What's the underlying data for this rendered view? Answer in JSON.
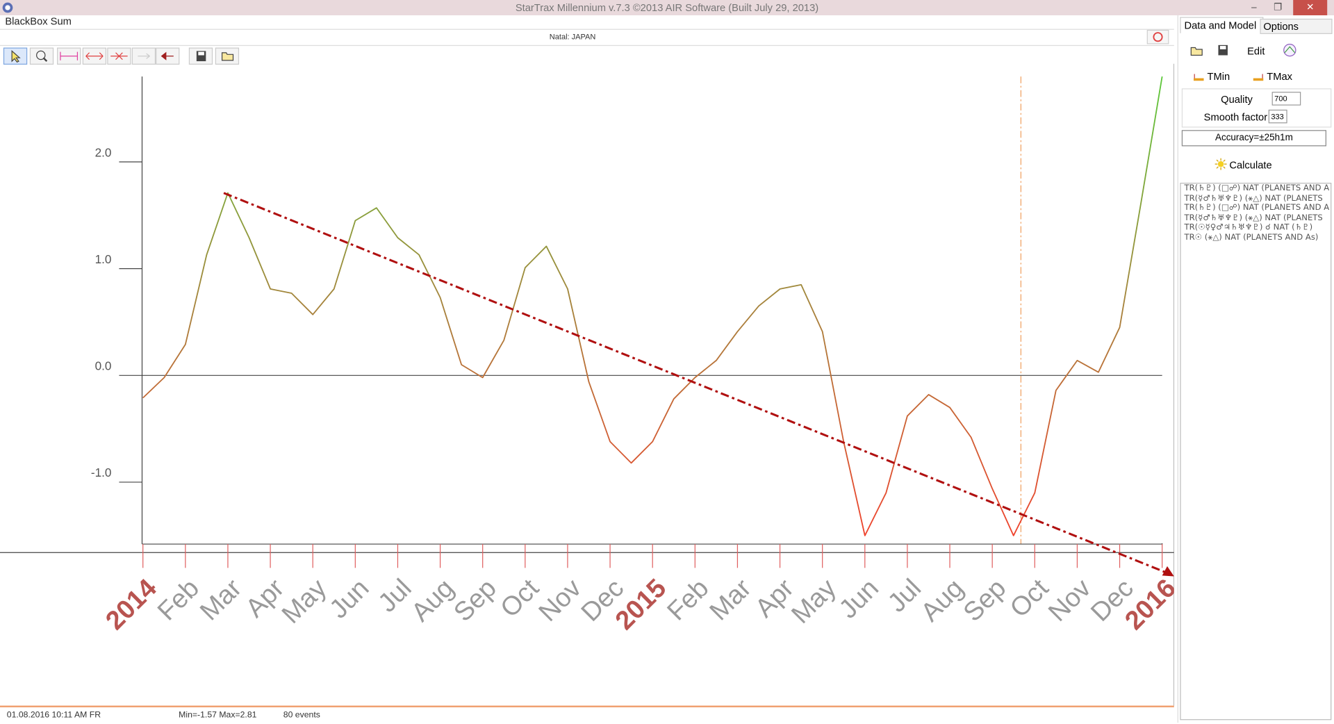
{
  "window": {
    "title": "StarTrax Millennium v.7.3 ©2013 AIR Software (Built July 29, 2013)"
  },
  "panel": {
    "title": "BlackBox Sum",
    "subtitle": "Natal: JAPAN"
  },
  "sidebar": {
    "tabs": [
      "Data and Model",
      "Options"
    ],
    "edit": "Edit",
    "tmin": "TMin",
    "tmax": "TMax",
    "quality_label": "Quality",
    "quality": "700",
    "smooth_label": "Smooth factor",
    "smooth": "333",
    "accuracy": "Accuracy=±25h1m",
    "calculate": "Calculate",
    "list": [
      "TR(♄♇) (□☍)  NAT (PLANETS AND A",
      "TR(☿♂♄♅♆♇) (⚹△)  NAT (PLANETS",
      "TR(♄♇) (□☍)  NAT (PLANETS AND A",
      "TR(☿♂♄♅♆♇) (⚹△)  NAT (PLANETS",
      "TR(☉☿♀♂♃♄♅♆♇) ☌  NAT (♄♇)",
      "TR☉ (⚹△)  NAT (PLANETS AND As)"
    ]
  },
  "status": [
    "01.08.2016  10:11 AM FR",
    "Min=-1.57  Max=2.81",
    "80 events"
  ],
  "chart_data": {
    "type": "line",
    "categories": [
      "2014",
      null,
      "Feb",
      null,
      "Mar",
      null,
      "Apr",
      null,
      "May",
      null,
      "Jun",
      null,
      "Jul",
      null,
      "Aug",
      null,
      "Sep",
      null,
      "Oct",
      null,
      "Nov",
      null,
      "Dec",
      null,
      "2015",
      null,
      "Feb",
      null,
      "Mar",
      null,
      "Apr",
      null,
      "May",
      null,
      "Jun",
      null,
      "Jul",
      null,
      "Aug",
      null,
      "Sep",
      null,
      "Oct",
      null,
      "Nov",
      null,
      "Dec",
      null,
      "2016"
    ],
    "values": [
      -0.21,
      -0.02,
      0.29,
      1.13,
      1.71,
      1.29,
      0.81,
      0.77,
      0.57,
      0.81,
      1.45,
      1.57,
      1.29,
      1.13,
      0.73,
      0.1,
      -0.02,
      0.33,
      1.01,
      1.21,
      0.81,
      -0.06,
      -0.62,
      -0.82,
      -0.62,
      -0.22,
      -0.02,
      0.14,
      0.41,
      0.65,
      0.81,
      0.85,
      0.41,
      -0.62,
      -1.5,
      -1.1,
      -0.38,
      -0.18,
      -0.3,
      -0.58,
      -1.06,
      -1.5,
      -1.1,
      -0.14,
      0.14,
      0.03,
      0.45,
      1.61,
      2.8
    ],
    "color": [
      "#5cc83a",
      "#a8823c",
      "#f2402c"
    ],
    "ylim": [
      -1.58,
      2.8
    ],
    "yticks": [
      {
        "value": -1,
        "label": "-1.0"
      },
      {
        "value": 0,
        "label": "0.0"
      },
      {
        "value": 1,
        "label": "1.0"
      },
      {
        "value": 2,
        "label": "2.0"
      }
    ]
  }
}
